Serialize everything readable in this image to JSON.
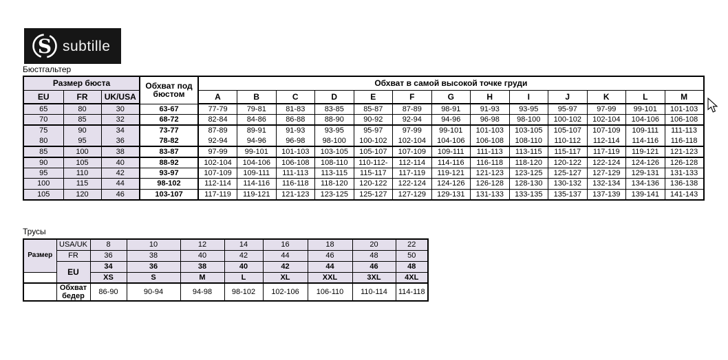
{
  "logo": {
    "brand": "subtille",
    "icon": "s-circle-logo"
  },
  "cursor_icon": "arrow-cursor",
  "colors": {
    "header_bg": "#e4dfec",
    "border": "#000000",
    "logo_bg": "#161616",
    "logo_fg": "#ffffff"
  },
  "bra_table": {
    "title": "Бюстгальтер",
    "header": {
      "bust_size": "Размер бюста",
      "underbust": "Обхват под бюстом",
      "bust_point": "Обхват в самой высокой точке груди",
      "eu": "EU",
      "fr": "FR",
      "ukus": "UK/USA",
      "cups": [
        "A",
        "B",
        "C",
        "D",
        "E",
        "F",
        "G",
        "H",
        "I",
        "J",
        "K",
        "L",
        "M"
      ]
    },
    "rows": [
      {
        "eu": "65",
        "fr": "80",
        "ukus": "30",
        "underbust": "63-67",
        "cups": [
          "77-79",
          "79-81",
          "81-83",
          "83-85",
          "85-87",
          "87-89",
          "98-91",
          "91-93",
          "93-95",
          "95-97",
          "97-99",
          "99-101",
          "101-103"
        ]
      },
      {
        "eu": "70",
        "fr": "85",
        "ukus": "32",
        "underbust": "68-72",
        "cups": [
          "82-84",
          "84-86",
          "86-88",
          "88-90",
          "90-92",
          "92-94",
          "94-96",
          "96-98",
          "98-100",
          "100-102",
          "102-104",
          "104-106",
          "106-108"
        ]
      },
      {
        "eu": "75",
        "fr": "90",
        "ukus": "34",
        "underbust": "73-77",
        "cups": [
          "87-89",
          "89-91",
          "91-93",
          "93-95",
          "95-97",
          "97-99",
          "99-101",
          "101-103",
          "103-105",
          "105-107",
          "107-109",
          "109-111",
          "111-113"
        ]
      },
      {
        "eu": "80",
        "fr": "95",
        "ukus": "36",
        "underbust": "78-82",
        "cups": [
          "92-94",
          "94-96",
          "96-98",
          "98-100",
          "100-102",
          "102-104",
          "104-106",
          "106-108",
          "108-110",
          "110-112",
          "112-114",
          "114-116",
          "116-118"
        ]
      },
      {
        "eu": "85",
        "fr": "100",
        "ukus": "38",
        "underbust": "83-87",
        "cups": [
          "97-99",
          "99-101",
          "101-103",
          "103-105",
          "105-107",
          "107-109",
          "109-111",
          "111-113",
          "113-115",
          "115-117",
          "117-119",
          "119-121",
          "121-123"
        ]
      },
      {
        "eu": "90",
        "fr": "105",
        "ukus": "40",
        "underbust": "88-92",
        "cups": [
          "102-104",
          "104-106",
          "106-108",
          "108-110",
          "110-112-",
          "112-114",
          "114-116",
          "116-118",
          "118-120",
          "120-122",
          "122-124",
          "124-126",
          "126-128"
        ]
      },
      {
        "eu": "95",
        "fr": "110",
        "ukus": "42",
        "underbust": "93-97",
        "cups": [
          "107-109",
          "109-111",
          "111-113",
          "113-115",
          "115-117",
          "117-119",
          "119-121",
          "121-123",
          "123-125",
          "125-127",
          "127-129",
          "129-131",
          "131-133"
        ]
      },
      {
        "eu": "100",
        "fr": "115",
        "ukus": "44",
        "underbust": "98-102",
        "cups": [
          "112-114",
          "114-116",
          "116-118",
          "118-120",
          "120-122",
          "122-124",
          "124-126",
          "126-128",
          "128-130",
          "130-132",
          "132-134",
          "134-136",
          "136-138"
        ]
      },
      {
        "eu": "105",
        "fr": "120",
        "ukus": "46",
        "underbust": "103-107",
        "cups": [
          "117-119",
          "119-121",
          "121-123",
          "123-125",
          "125-127",
          "127-129",
          "129-131",
          "131-133",
          "133-135",
          "135-137",
          "137-139",
          "139-141",
          "141-143"
        ]
      }
    ]
  },
  "panties_table": {
    "title": "Трусы",
    "size_label": "Размер",
    "hips_label": "Обхват бедер",
    "row_labels": {
      "usauk": "USA/UK",
      "fr": "FR",
      "eu": "EU"
    },
    "usauk": [
      "8",
      "10",
      "12",
      "14",
      "16",
      "18",
      "20",
      "22"
    ],
    "fr": [
      "36",
      "38",
      "40",
      "42",
      "44",
      "46",
      "48",
      "50"
    ],
    "eu_num": [
      "34",
      "36",
      "38",
      "40",
      "42",
      "44",
      "46",
      "48"
    ],
    "eu_letter": [
      "XS",
      "S",
      "M",
      "L",
      "XL",
      "XXL",
      "3XL",
      "4XL"
    ],
    "hips": [
      "86-90",
      "90-94",
      "94-98",
      "98-102",
      "102-106",
      "106-110",
      "110-114",
      "114-118"
    ]
  }
}
